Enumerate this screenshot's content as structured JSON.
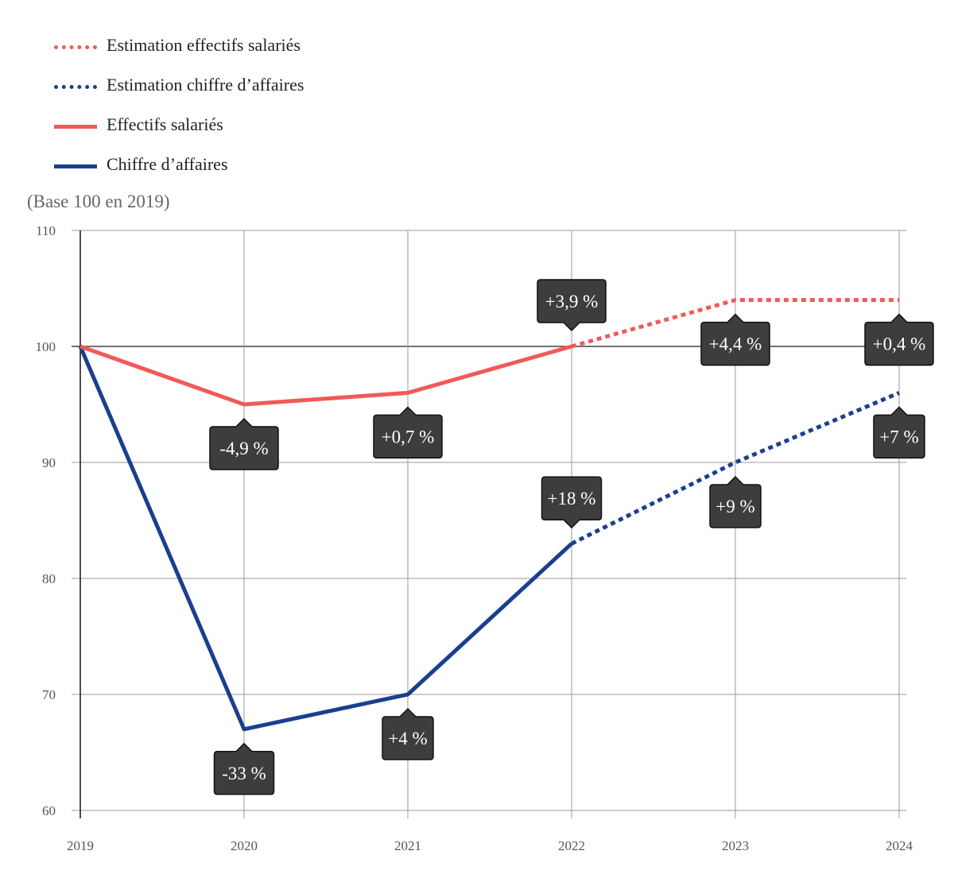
{
  "chart_data": {
    "type": "line",
    "title": "",
    "unit_label": "(Base 100 en 2019)",
    "categories": [
      "2019",
      "2020",
      "2021",
      "2022",
      "2023",
      "2024"
    ],
    "ylim": [
      60,
      110
    ],
    "yticks": [
      60,
      70,
      80,
      90,
      100,
      110
    ],
    "grid": true,
    "legend_position": "top-left",
    "legend": [
      {
        "label": "Estimation effectifs salariés",
        "color": "#f05a5a",
        "style": "dotted",
        "series": "effectifs_estimation"
      },
      {
        "label": "Estimation chiffre d’affaires",
        "color": "#1a3f8f",
        "style": "dotted",
        "series": "ca_estimation"
      },
      {
        "label": "Effectifs salariés",
        "color": "#f05a5a",
        "style": "solid",
        "series": "effectifs"
      },
      {
        "label": "Chiffre d’affaires",
        "color": "#1a3f8f",
        "style": "solid",
        "series": "ca"
      }
    ],
    "series": [
      {
        "name": "Effectifs salariés",
        "key": "effectifs",
        "color": "#f05a5a",
        "style": "solid",
        "x": [
          "2019",
          "2020",
          "2021",
          "2022"
        ],
        "values": [
          100,
          95,
          96,
          100
        ]
      },
      {
        "name": "Estimation effectifs salariés",
        "key": "effectifs_estimation",
        "color": "#f05a5a",
        "style": "dotted",
        "x": [
          "2022",
          "2023",
          "2024"
        ],
        "values": [
          100,
          104,
          104
        ]
      },
      {
        "name": "Chiffre d’affaires",
        "key": "ca",
        "color": "#1a3f8f",
        "style": "solid",
        "x": [
          "2019",
          "2020",
          "2021",
          "2022"
        ],
        "values": [
          100,
          67,
          70,
          83
        ]
      },
      {
        "name": "Estimation chiffre d’affaires",
        "key": "ca_estimation",
        "color": "#1a3f8f",
        "style": "dotted",
        "x": [
          "2022",
          "2023",
          "2024"
        ],
        "values": [
          83,
          90,
          96
        ]
      }
    ],
    "annotations": [
      {
        "x": "2020",
        "y": 95,
        "text": "-4,9 %",
        "placement": "below"
      },
      {
        "x": "2021",
        "y": 96,
        "text": "+0,7 %",
        "placement": "below"
      },
      {
        "x": "2022",
        "y": 100,
        "text": "+3,9 %",
        "placement": "above"
      },
      {
        "x": "2023",
        "y": 104,
        "text": "+4,4 %",
        "placement": "below"
      },
      {
        "x": "2024",
        "y": 104,
        "text": "+0,4 %",
        "placement": "below"
      },
      {
        "x": "2020",
        "y": 67,
        "text": "-33 %",
        "placement": "below"
      },
      {
        "x": "2021",
        "y": 70,
        "text": "+4 %",
        "placement": "below"
      },
      {
        "x": "2022",
        "y": 83,
        "text": "+18 %",
        "placement": "above"
      },
      {
        "x": "2023",
        "y": 90,
        "text": "+9 %",
        "placement": "below"
      },
      {
        "x": "2024",
        "y": 96,
        "text": "+7 %",
        "placement": "below"
      }
    ],
    "callout_color": "#3d3d3d"
  }
}
